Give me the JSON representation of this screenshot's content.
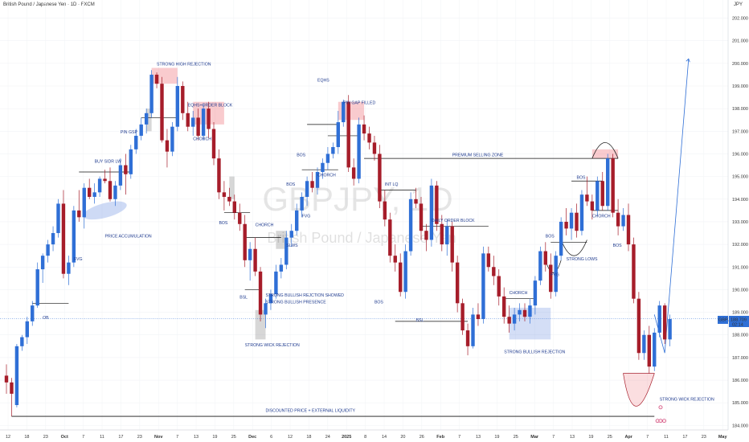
{
  "header": {
    "title": "British Pound / Japanese Yen · 1D · FXCM",
    "currency": "JPY"
  },
  "watermark": {
    "symbol": "GBPJPY, 1D",
    "name": "British Pound / Japanese Yen"
  },
  "price_badge": {
    "symbol": "GBPJPY",
    "price": "188.709",
    "countdown": "02:14"
  },
  "colors": {
    "up": "#2f6fd6",
    "down": "#a61d2a",
    "accent": "#1f3b8f",
    "grid": "#f1f3f6"
  },
  "chart_data": {
    "type": "candlestick",
    "ylim": [
      183.8,
      202.8
    ],
    "y_ticks": [
      184,
      185,
      186,
      187,
      188,
      189,
      190,
      191,
      192,
      193,
      194,
      195,
      196,
      197,
      198,
      199,
      200,
      201,
      202
    ],
    "x_ticks": [
      "12",
      "18",
      "23",
      "Oct",
      "7",
      "11",
      "17",
      "23",
      "Nov",
      "7",
      "13",
      "19",
      "25",
      "Dec",
      "6",
      "12",
      "18",
      "24",
      "2025",
      "8",
      "14",
      "20",
      "26",
      "Feb",
      "7",
      "13",
      "19",
      "25",
      "Mar",
      "7",
      "13",
      "19",
      "25",
      "Apr",
      "7",
      "11",
      "17",
      "23",
      "May",
      "7"
    ],
    "candles": [
      [
        186.2,
        186.7,
        185.4,
        185.9
      ],
      [
        185.9,
        186.1,
        184.4,
        185.4
      ],
      [
        184.9,
        187.6,
        184.8,
        187.5
      ],
      [
        187.5,
        188.0,
        187.3,
        187.9
      ],
      [
        187.9,
        188.8,
        187.6,
        188.6
      ],
      [
        188.6,
        189.5,
        188.4,
        189.3
      ],
      [
        189.3,
        191.2,
        189.2,
        190.9
      ],
      [
        190.9,
        191.6,
        190.3,
        191.5
      ],
      [
        191.5,
        192.2,
        191.2,
        192.0
      ],
      [
        192.0,
        192.8,
        191.7,
        192.5
      ],
      [
        192.5,
        194.0,
        192.3,
        193.8
      ],
      [
        193.8,
        194.4,
        190.5,
        190.7
      ],
      [
        190.7,
        191.5,
        190.2,
        191.2
      ],
      [
        191.2,
        193.7,
        191.0,
        193.5
      ],
      [
        193.5,
        194.4,
        193.0,
        193.2
      ],
      [
        193.2,
        194.7,
        192.7,
        194.5
      ],
      [
        194.5,
        194.9,
        194.0,
        194.1
      ],
      [
        194.1,
        194.7,
        193.8,
        194.3
      ],
      [
        194.3,
        195.0,
        194.1,
        194.9
      ],
      [
        194.9,
        195.3,
        194.7,
        194.8
      ],
      [
        194.8,
        195.4,
        193.9,
        194.0
      ],
      [
        194.0,
        194.8,
        193.7,
        194.6
      ],
      [
        194.6,
        195.8,
        194.4,
        195.5
      ],
      [
        195.5,
        196.0,
        194.2,
        195.1
      ],
      [
        195.1,
        196.4,
        194.9,
        196.2
      ],
      [
        196.2,
        197.1,
        196.0,
        196.8
      ],
      [
        196.8,
        197.6,
        196.6,
        197.3
      ],
      [
        197.3,
        198.0,
        196.9,
        197.8
      ],
      [
        197.8,
        199.7,
        197.6,
        199.5
      ],
      [
        199.5,
        199.6,
        198.9,
        199.1
      ],
      [
        199.1,
        199.4,
        196.5,
        196.6
      ],
      [
        196.6,
        197.1,
        195.4,
        196.1
      ],
      [
        196.1,
        197.4,
        195.9,
        197.2
      ],
      [
        197.2,
        199.4,
        197.0,
        199.0
      ],
      [
        199.0,
        199.2,
        197.5,
        197.8
      ],
      [
        197.8,
        198.3,
        197.0,
        197.2
      ],
      [
        197.2,
        197.9,
        196.8,
        197.6
      ],
      [
        197.6,
        198.0,
        196.6,
        196.8
      ],
      [
        196.8,
        198.2,
        196.6,
        198.0
      ],
      [
        198.0,
        198.3,
        196.7,
        197.1
      ],
      [
        197.1,
        197.4,
        195.5,
        195.8
      ],
      [
        195.8,
        196.2,
        194.0,
        194.3
      ],
      [
        194.3,
        194.8,
        193.5,
        194.1
      ],
      [
        194.1,
        194.5,
        193.7,
        193.9
      ],
      [
        193.9,
        194.2,
        193.1,
        193.4
      ],
      [
        193.4,
        193.8,
        192.6,
        192.9
      ],
      [
        192.9,
        193.3,
        191.0,
        191.3
      ],
      [
        191.3,
        192.1,
        190.4,
        191.8
      ],
      [
        191.8,
        192.3,
        190.6,
        190.8
      ],
      [
        190.8,
        191.0,
        188.6,
        188.9
      ],
      [
        188.9,
        189.6,
        188.3,
        189.4
      ],
      [
        189.4,
        190.0,
        189.1,
        189.8
      ],
      [
        189.8,
        191.1,
        189.6,
        190.8
      ],
      [
        190.8,
        191.4,
        190.5,
        191.1
      ],
      [
        191.1,
        192.6,
        190.9,
        192.3
      ],
      [
        192.3,
        192.9,
        191.9,
        192.6
      ],
      [
        192.6,
        193.8,
        192.4,
        193.5
      ],
      [
        193.5,
        194.3,
        193.2,
        194.1
      ],
      [
        194.1,
        195.0,
        193.7,
        194.8
      ],
      [
        194.8,
        195.2,
        194.3,
        194.5
      ],
      [
        194.5,
        195.4,
        194.2,
        195.2
      ],
      [
        195.2,
        195.8,
        194.9,
        195.6
      ],
      [
        195.6,
        196.3,
        195.3,
        196.0
      ],
      [
        196.0,
        196.5,
        195.8,
        196.3
      ],
      [
        196.3,
        197.9,
        196.0,
        197.4
      ],
      [
        197.4,
        198.4,
        197.2,
        198.3
      ],
      [
        198.3,
        198.6,
        195.2,
        195.4
      ],
      [
        195.4,
        195.8,
        194.6,
        194.9
      ],
      [
        194.9,
        197.6,
        194.7,
        197.3
      ],
      [
        197.3,
        197.7,
        196.6,
        196.9
      ],
      [
        196.9,
        197.2,
        196.2,
        196.5
      ],
      [
        196.5,
        196.8,
        195.7,
        196.0
      ],
      [
        196.0,
        196.4,
        193.6,
        193.9
      ],
      [
        193.9,
        194.4,
        192.8,
        193.1
      ],
      [
        193.1,
        193.4,
        191.2,
        191.5
      ],
      [
        191.5,
        192.0,
        190.8,
        191.2
      ],
      [
        191.2,
        191.6,
        189.7,
        189.9
      ],
      [
        189.9,
        192.0,
        189.6,
        191.7
      ],
      [
        191.7,
        194.3,
        191.5,
        194.0
      ],
      [
        194.0,
        194.5,
        193.6,
        193.8
      ],
      [
        193.8,
        194.1,
        192.2,
        192.6
      ],
      [
        192.6,
        192.9,
        191.7,
        192.2
      ],
      [
        192.2,
        194.9,
        191.9,
        194.6
      ],
      [
        194.6,
        194.8,
        192.6,
        192.9
      ],
      [
        192.9,
        193.3,
        191.7,
        192.0
      ],
      [
        192.0,
        193.1,
        191.5,
        192.8
      ],
      [
        192.8,
        193.0,
        190.8,
        191.2
      ],
      [
        191.2,
        191.5,
        189.0,
        189.4
      ],
      [
        189.4,
        189.6,
        188.0,
        188.2
      ],
      [
        188.2,
        188.5,
        187.1,
        187.5
      ],
      [
        187.5,
        189.2,
        187.4,
        188.9
      ],
      [
        188.9,
        189.4,
        188.4,
        188.7
      ],
      [
        188.7,
        191.9,
        188.5,
        191.6
      ],
      [
        191.6,
        191.9,
        190.8,
        191.0
      ],
      [
        191.0,
        191.5,
        190.2,
        190.6
      ],
      [
        190.6,
        190.9,
        189.3,
        189.7
      ],
      [
        189.7,
        190.1,
        188.5,
        188.8
      ],
      [
        188.8,
        189.3,
        188.1,
        188.5
      ],
      [
        188.5,
        189.2,
        188.2,
        188.9
      ],
      [
        188.9,
        189.4,
        188.6,
        189.1
      ],
      [
        189.1,
        189.4,
        188.6,
        188.8
      ],
      [
        188.8,
        189.6,
        188.5,
        189.3
      ],
      [
        189.3,
        190.6,
        188.9,
        190.4
      ],
      [
        190.4,
        191.9,
        190.2,
        191.7
      ],
      [
        191.7,
        192.1,
        190.8,
        191.1
      ],
      [
        191.1,
        191.6,
        189.6,
        189.9
      ],
      [
        189.9,
        191.7,
        189.7,
        191.5
      ],
      [
        191.5,
        193.2,
        191.3,
        193.0
      ],
      [
        193.0,
        193.6,
        192.4,
        192.7
      ],
      [
        192.7,
        193.6,
        192.2,
        193.4
      ],
      [
        193.4,
        193.8,
        192.3,
        192.6
      ],
      [
        192.6,
        194.4,
        192.4,
        194.2
      ],
      [
        194.2,
        195.0,
        193.7,
        193.9
      ],
      [
        193.9,
        194.2,
        193.1,
        193.5
      ],
      [
        193.5,
        195.0,
        193.3,
        194.8
      ],
      [
        194.8,
        195.2,
        193.5,
        193.7
      ],
      [
        193.7,
        196.0,
        193.5,
        195.8
      ],
      [
        195.8,
        196.0,
        193.2,
        193.4
      ],
      [
        193.4,
        194.0,
        192.4,
        192.8
      ],
      [
        192.8,
        193.6,
        192.6,
        193.3
      ],
      [
        193.3,
        193.8,
        191.7,
        192.0
      ],
      [
        192.0,
        192.3,
        189.4,
        189.6
      ],
      [
        189.6,
        189.9,
        186.9,
        187.2
      ],
      [
        187.2,
        188.2,
        186.9,
        188.0
      ],
      [
        188.0,
        188.4,
        186.3,
        186.6
      ],
      [
        186.6,
        188.3,
        186.4,
        188.1
      ],
      [
        188.1,
        189.5,
        187.9,
        189.3
      ],
      [
        189.3,
        189.4,
        187.6,
        187.8
      ],
      [
        187.8,
        188.9,
        187.5,
        188.7
      ]
    ],
    "annotations": [
      "STRONG HIGH REJECTION",
      "EQHS+ORDER BLOCK",
      "PIN GSP",
      "BUY SIDR LW",
      "CHORCH",
      "FVG",
      "PRICE ACCUMULATION",
      "OB",
      "BOS",
      "CHORCH",
      "SLWS",
      "BSL",
      "STRONG BULLISH REJCTION SHOWED",
      "STRONG BULLISH PRESENCE",
      "STRONG WICK REJECTION",
      "EQHS",
      "PIN GAP FILLED",
      "BOS",
      "BOS",
      "CHORCH",
      "FVG",
      "INT LQ",
      "DAILY ORDER BLOCK",
      "BOS",
      "BSL",
      "PREMIUM SELLING ZONE",
      "CHORCH",
      "STRONG BULLISH REJECTION",
      "BOS",
      "FVG",
      "STRONG LOWS",
      "BOS",
      "CHORCH",
      "BOS",
      "DISCOUNTED PRICE + EXTERNAL LIQUIDITY",
      "STRONG WICK REJECTION"
    ]
  }
}
